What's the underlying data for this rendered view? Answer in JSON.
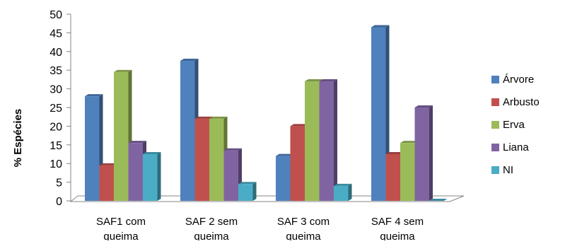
{
  "chart_data": {
    "type": "bar",
    "title": "",
    "xlabel": "",
    "ylabel": "% Espécies",
    "ylim": [
      0,
      50
    ],
    "y_ticks": [
      0,
      5,
      10,
      15,
      20,
      25,
      30,
      35,
      40,
      45,
      50
    ],
    "categories": [
      [
        "SAF1 com",
        "queima"
      ],
      [
        "SAF 2 sem",
        "queima"
      ],
      [
        "SAF 3 com",
        "queima"
      ],
      [
        "SAF 4  sem",
        "queima"
      ]
    ],
    "series": [
      {
        "name": "Árvore",
        "color": "#4F81BD",
        "values": [
          28.0,
          37.5,
          12.0,
          46.5
        ]
      },
      {
        "name": "Arbusto",
        "color": "#C0504D",
        "values": [
          9.5,
          22.0,
          20.0,
          12.5
        ]
      },
      {
        "name": "Erva",
        "color": "#9BBB59",
        "values": [
          34.5,
          22.0,
          32.0,
          15.5
        ]
      },
      {
        "name": "Liana",
        "color": "#8064A2",
        "values": [
          15.5,
          13.5,
          32.0,
          25.0
        ]
      },
      {
        "name": "NI",
        "color": "#4BACC6",
        "values": [
          12.5,
          4.5,
          4.0,
          0.0
        ]
      }
    ],
    "legend": "right",
    "grid": false
  }
}
